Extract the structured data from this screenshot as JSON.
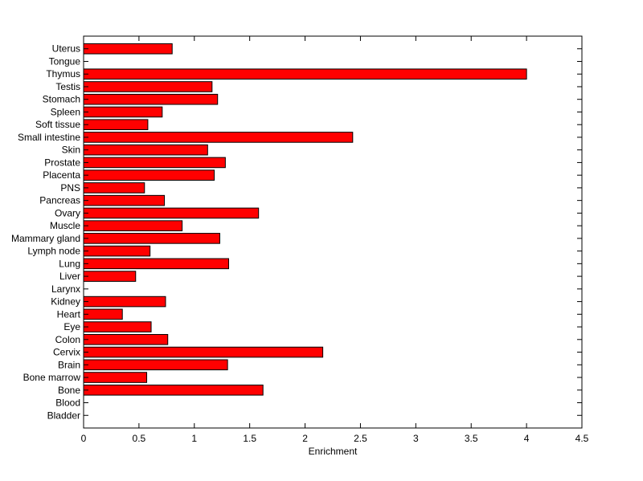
{
  "chart_data": {
    "type": "bar",
    "orientation": "horizontal",
    "title": "",
    "xlabel": "Enrichment",
    "ylabel": "",
    "xlim": [
      0,
      4.5
    ],
    "xticks": [
      0,
      0.5,
      1,
      1.5,
      2,
      2.5,
      3,
      3.5,
      4,
      4.5
    ],
    "xtick_labels": [
      "0",
      "0.5",
      "1",
      "1.5",
      "2",
      "2.5",
      "3",
      "3.5",
      "4",
      "4.5"
    ],
    "grid": false,
    "legend": "none",
    "bar_color": "#ff0000",
    "categories": [
      "Bladder",
      "Blood",
      "Bone",
      "Bone marrow",
      "Brain",
      "Cervix",
      "Colon",
      "Eye",
      "Heart",
      "Kidney",
      "Larynx",
      "Liver",
      "Lung",
      "Lymph node",
      "Mammary gland",
      "Muscle",
      "Ovary",
      "Pancreas",
      "PNS",
      "Placenta",
      "Prostate",
      "Skin",
      "Small intestine",
      "Soft tissue",
      "Spleen",
      "Stomach",
      "Testis",
      "Thymus",
      "Tongue",
      "Uterus"
    ],
    "values": [
      0,
      0,
      1.62,
      0.57,
      1.3,
      2.16,
      0.76,
      0.61,
      0.35,
      0.74,
      0,
      0.47,
      1.31,
      0.6,
      1.23,
      0.89,
      1.58,
      0.73,
      0.55,
      1.18,
      1.28,
      1.12,
      2.43,
      0.58,
      0.71,
      1.21,
      1.16,
      4.0,
      0,
      0.8
    ]
  }
}
